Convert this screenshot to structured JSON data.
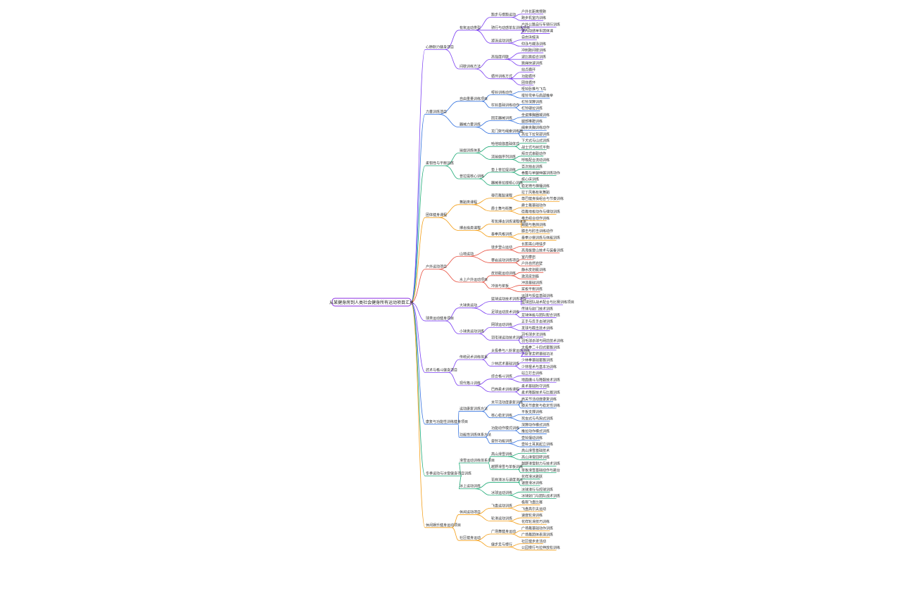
{
  "root": {
    "label": "从某健身房到人类社会健身所有运动项目汇总"
  },
  "colors": [
    "#7b3ff2",
    "#2f6fde",
    "#19a974",
    "#f39c12",
    "#e74c3c",
    "#7b3ff2",
    "#7b3ff2",
    "#2f6fde",
    "#19a974",
    "#f39c12"
  ],
  "branches": [
    {
      "label": "心肺耐力健身项目",
      "children": [
        {
          "label": "有氧运动类型",
          "children": [
            {
              "label": "跑步与慢跑运动",
              "children": [
                "户外长距离慢跑",
                "跑步机室内训练"
              ]
            },
            {
              "label": "骑行与动感单车训练项目",
              "children": [
                "户外公路自行车骑行训练",
                "室内动感单车团体课"
              ]
            },
            {
              "label": "游泳运动训练",
              "children": [
                "自由泳蛙泳",
                "仰泳与蝶泳训练"
              ]
            }
          ]
        },
        {
          "label": "间歇训练方法",
          "children": [
            {
              "label": "高强度间歇",
              "children": [
                "冲刺跑间歇训练",
                "波比跳组合训练",
                "跳绳快速训练"
              ]
            },
            {
              "label": "循环训练方式",
              "children": [
                "站点循环",
                "功能循环",
                "团体循环"
              ]
            }
          ]
        }
      ]
    },
    {
      "label": "力量训练项目",
      "children": [
        {
          "label": "自由重量训练项目",
          "children": [
            {
              "label": "哑铃训练动作",
              "children": [
                "哑铃卧推与飞鸟",
                "哑铃弯举与肩部推举"
              ]
            },
            {
              "label": "杠铃基础训练动作",
              "children": [
                "杠铃深蹲训练",
                "杠铃硬拉训练"
              ]
            }
          ]
        },
        {
          "label": "器械力量训练",
          "children": [
            {
              "label": "固定器械训练",
              "children": [
                "坐姿推胸器械训练",
                "腿部推蹬训练"
              ]
            },
            {
              "label": "龙门架与绳索训练器",
              "children": [
                "绳索夹胸训练动作",
                "高位下拉背部训练"
              ]
            }
          ]
        }
      ]
    },
    {
      "label": "柔韧性与平衡训练",
      "children": [
        {
          "label": "瑜伽训练体系",
          "children": [
            {
              "label": "哈他瑜伽基础体式",
              "children": [
                "下犬式与山式训练",
                "战士式与树式平衡"
              ]
            },
            {
              "label": "流瑜伽序列训练",
              "children": [
                "拜日式串联动作",
                "呼吸配合流动训练"
              ]
            }
          ]
        },
        {
          "label": "普拉提核心训练",
          "children": [
            {
              "label": "垫上普拉提训练",
              "children": [
                "百次拍击训练",
                "卷腹与单腿伸展训练动作"
              ]
            },
            {
              "label": "器械普拉提核心训练",
              "children": [
                "核心床训练",
                "稳定椅与梯桶训练"
              ]
            }
          ]
        }
      ]
    },
    {
      "label": "团体健身课程",
      "children": [
        {
          "label": "舞蹈类课程",
          "children": [
            {
              "label": "尊巴舞蹈课程",
              "children": [
                "拉丁风格有氧舞蹈",
                "尊巴健身操组合与节奏训练"
              ]
            },
            {
              "label": "爵士舞与街舞",
              "children": [
                "爵士舞基础动作",
                "街舞地板动作与律动训练"
              ]
            }
          ]
        },
        {
          "label": "搏击操类课程",
          "children": [
            {
              "label": "有氧搏击训练课程体系",
              "children": [
                "拳击组合动作训练",
                "踢腿与格挡训练"
              ]
            },
            {
              "label": "泰拳风格训练",
              "children": [
                "膝击与肘击训练动作",
                "泰拳沙袋训练与体能训练"
              ]
            }
          ]
        }
      ]
    },
    {
      "label": "户外运动项目",
      "children": [
        {
          "label": "山地运动",
          "children": [
            {
              "label": "徒步登山运动",
              "children": [
                "长距离山地徒步",
                "高海拔登山技术与装备训练"
              ]
            },
            {
              "label": "攀岩运动训练项目",
              "children": [
                "室内攀岩",
                "户外自然岩壁"
              ]
            }
          ]
        },
        {
          "label": "水上户外运动项目",
          "children": [
            {
              "label": "皮划艇运动训练",
              "children": [
                "静水皮划艇训练",
                "激流皮划艇"
              ]
            },
            {
              "label": "冲浪与桨板",
              "children": [
                "冲浪基础训练",
                "桨板平衡训练"
              ]
            }
          ]
        }
      ]
    },
    {
      "label": "球类运动健身项目",
      "children": [
        {
          "label": "大球类运动",
          "children": [
            {
              "label": "篮球运动技术训练项目",
              "children": [
                "运球与投篮基础训练",
                "篮球团队战术配合与比赛训练项目"
              ]
            },
            {
              "label": "足球运动技术训练",
              "children": [
                "传球与射门技术训练",
                "足球体能与团队配合训练"
              ]
            }
          ]
        },
        {
          "label": "小球类运动训练",
          "children": [
            {
              "label": "网球运动训练",
              "children": [
                "正手与反手击球训练",
                "发球与截击技术训练"
              ]
            },
            {
              "label": "羽毛球运动技术训练",
              "children": [
                "羽毛球步法训练",
                "羽毛球杀球与网前技术训练"
              ]
            }
          ]
        }
      ]
    },
    {
      "label": "武术与格斗健身项目",
      "children": [
        {
          "label": "传统武术训练体系",
          "children": [
            {
              "label": "太极拳与八卦掌运动训练",
              "children": [
                "太极拳二十四式套路训练",
                "八卦掌走转基础功法"
              ]
            },
            {
              "label": "少林武术基础训练",
              "children": [
                "少林拳基础套路训练",
                "少林棍术与基本功训练"
              ]
            }
          ]
        },
        {
          "label": "现代格斗训练",
          "children": [
            {
              "label": "综合格斗训练",
              "children": [
                "站立打击训练",
                "地面缠斗与降服技术训练"
              ]
            },
            {
              "label": "巴西柔术训练课程",
              "children": [
                "柔术基础防守训练",
                "柔术降服技术与比赛训练"
              ]
            }
          ]
        }
      ]
    },
    {
      "label": "康复与功能性训练健身项目",
      "children": [
        {
          "label": "运动康复训练方法",
          "children": [
            {
              "label": "关节活动度康复训练",
              "children": [
                "肩关节活动度康复训练",
                "膝关节康复与稳定性训练"
              ]
            },
            {
              "label": "核心稳定训练",
              "children": [
                "平板支撑训练",
                "死虫式与鸟狗式训练"
              ]
            }
          ]
        },
        {
          "label": "功能性训练体系方法",
          "children": [
            {
              "label": "功能动作模式训练",
              "children": [
                "深蹲动作模式训练",
                "推拉动作模式训练"
              ]
            },
            {
              "label": "壶铃功能训练",
              "children": [
                "壶铃摆动训练",
                "壶铃土耳其起立训练"
              ]
            }
          ]
        }
      ]
    },
    {
      "label": "冬季运动与冰雪健身项目训练",
      "children": [
        {
          "label": "滑雪运动训练体系项目",
          "children": [
            {
              "label": "高山滑雪训练",
              "children": [
                "高山滑雪基础技术",
                "高山滑雪回转训练"
              ]
            },
            {
              "label": "越野滑雪与单板训练",
              "children": [
                "越野滑雪耐力与技术训练",
                "单板滑雪基础动作与跳台"
              ]
            }
          ]
        },
        {
          "label": "冰上运动训练",
          "children": [
            {
              "label": "花样滑冰与速度滑冰",
              "children": [
                "花样滑冰跳跃",
                "速度滑冰训练"
              ]
            },
            {
              "label": "冰球运动训练",
              "children": [
                "冰球滑行与控球训练",
                "冰球射门与团队战术训练"
              ]
            }
          ]
        }
      ]
    },
    {
      "label": "休闲娱乐健身运动项目",
      "children": [
        {
          "label": "休闲运动项目",
          "children": [
            {
              "label": "飞盘运动训练",
              "children": [
                "极限飞盘比赛",
                "飞盘高尔夫运动"
              ]
            },
            {
              "label": "轮滑运动训练",
              "children": [
                "速度轮滑训练",
                "花样轮滑技巧训练"
              ]
            }
          ]
        },
        {
          "label": "社区健身运动",
          "children": [
            {
              "label": "广场舞健身运动",
              "children": [
                "广场舞基础动作训练",
                "广场舞团体表演训练"
              ]
            },
            {
              "label": "健步走与慢行",
              "children": [
                "社区健步走活动",
                "公园慢行与拉伸放松训练"
              ]
            }
          ]
        }
      ]
    }
  ]
}
